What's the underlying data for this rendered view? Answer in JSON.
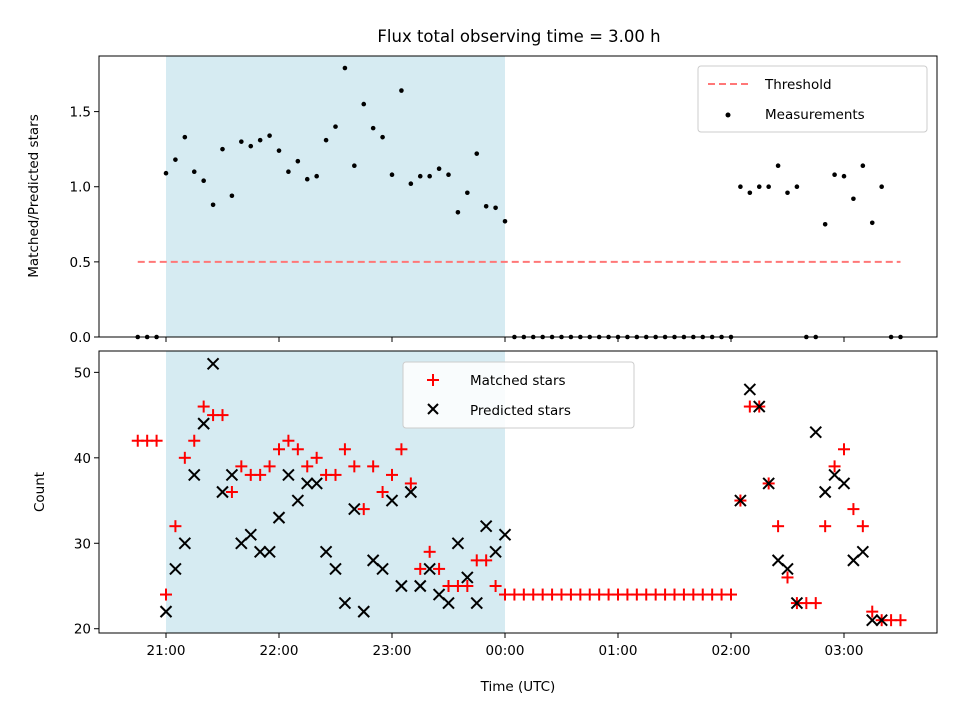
{
  "chart_data": [
    {
      "type": "scatter",
      "title": "Flux total observing time = 3.00 h",
      "xlabel": "",
      "ylabel": "Matched/Predicted stars",
      "ylim": [
        0,
        1.87
      ],
      "yticks": [
        "0.0",
        "0.5",
        "1.0",
        "1.5"
      ],
      "shaded_span": [
        "21:00",
        "00:00"
      ],
      "shade_color": "#add8e6",
      "legend_position": "top-right",
      "series": [
        {
          "name": "Threshold",
          "kind": "dashed-line",
          "color": "#ff7777",
          "x": [
            "20:45",
            "03:30"
          ],
          "y": [
            0.5,
            0.5
          ]
        },
        {
          "name": "Measurements",
          "kind": "points",
          "color": "#000000",
          "x": [
            "20:45",
            "20:50",
            "20:55",
            "21:00",
            "21:05",
            "21:10",
            "21:15",
            "21:20",
            "21:25",
            "21:30",
            "21:35",
            "21:40",
            "21:45",
            "21:50",
            "21:55",
            "22:00",
            "22:05",
            "22:10",
            "22:15",
            "22:20",
            "22:25",
            "22:30",
            "22:35",
            "22:40",
            "22:45",
            "22:50",
            "22:55",
            "23:00",
            "23:05",
            "23:10",
            "23:15",
            "23:20",
            "23:25",
            "23:30",
            "23:35",
            "23:40",
            "23:45",
            "23:50",
            "23:55",
            "00:00",
            "00:05",
            "00:10",
            "00:15",
            "00:20",
            "00:25",
            "00:30",
            "00:35",
            "00:40",
            "00:45",
            "00:50",
            "00:55",
            "01:00",
            "01:05",
            "01:10",
            "01:15",
            "01:20",
            "01:25",
            "01:30",
            "01:35",
            "01:40",
            "01:45",
            "01:50",
            "01:55",
            "02:00",
            "02:05",
            "02:10",
            "02:15",
            "02:20",
            "02:25",
            "02:30",
            "02:35",
            "02:40",
            "02:45",
            "02:50",
            "02:55",
            "03:00",
            "03:05",
            "03:10",
            "03:15",
            "03:20",
            "03:25",
            "03:30"
          ],
          "y": [
            0,
            0,
            0,
            1.09,
            1.18,
            1.33,
            1.1,
            1.04,
            0.88,
            1.25,
            0.94,
            1.3,
            1.27,
            1.31,
            1.34,
            1.24,
            1.1,
            1.17,
            1.05,
            1.07,
            1.31,
            1.4,
            1.79,
            1.14,
            1.55,
            1.39,
            1.33,
            1.08,
            1.64,
            1.02,
            1.07,
            1.07,
            1.12,
            1.08,
            0.83,
            0.96,
            1.22,
            0.87,
            0.86,
            0.77,
            0,
            0,
            0,
            0,
            0,
            0,
            0,
            0,
            0,
            0,
            0,
            0,
            0,
            0,
            0,
            0,
            0,
            0,
            0,
            0,
            0,
            0,
            0,
            0,
            1.0,
            0.96,
            1.0,
            1.0,
            1.14,
            0.96,
            1.0,
            0,
            0,
            0.75,
            1.08,
            1.07,
            0.92,
            1.14,
            0.76,
            1.0,
            0,
            0
          ]
        }
      ]
    },
    {
      "type": "scatter",
      "title": "",
      "xlabel": "Time (UTC)",
      "ylabel": "Count",
      "ylim": [
        19.5,
        52.5
      ],
      "yticks": [
        "20",
        "30",
        "40",
        "50"
      ],
      "xticks": [
        "21:00",
        "22:00",
        "23:00",
        "00:00",
        "01:00",
        "02:00",
        "03:00"
      ],
      "shaded_span": [
        "21:00",
        "00:00"
      ],
      "shade_color": "#add8e6",
      "legend_position": "top-center",
      "series": [
        {
          "name": "Matched stars",
          "kind": "plus",
          "color": "#ff0000",
          "x": [
            "20:45",
            "20:50",
            "20:55",
            "21:00",
            "21:05",
            "21:10",
            "21:15",
            "21:20",
            "21:25",
            "21:30",
            "21:35",
            "21:40",
            "21:45",
            "21:50",
            "21:55",
            "22:00",
            "22:05",
            "22:10",
            "22:15",
            "22:20",
            "22:25",
            "22:30",
            "22:35",
            "22:40",
            "22:45",
            "22:50",
            "22:55",
            "23:00",
            "23:05",
            "23:10",
            "23:15",
            "23:20",
            "23:25",
            "23:30",
            "23:35",
            "23:40",
            "23:45",
            "23:50",
            "23:55",
            "00:00",
            "00:05",
            "00:10",
            "00:15",
            "00:20",
            "00:25",
            "00:30",
            "00:35",
            "00:40",
            "00:45",
            "00:50",
            "00:55",
            "01:00",
            "01:05",
            "01:10",
            "01:15",
            "01:20",
            "01:25",
            "01:30",
            "01:35",
            "01:40",
            "01:45",
            "01:50",
            "01:55",
            "02:00",
            "02:05",
            "02:10",
            "02:15",
            "02:20",
            "02:25",
            "02:30",
            "02:35",
            "02:40",
            "02:45",
            "02:50",
            "02:55",
            "03:00",
            "03:05",
            "03:10",
            "03:15",
            "03:20",
            "03:25",
            "03:30"
          ],
          "y": [
            42,
            42,
            42,
            24,
            32,
            40,
            42,
            46,
            45,
            45,
            36,
            39,
            38,
            38,
            39,
            41,
            42,
            41,
            39,
            40,
            38,
            38,
            41,
            39,
            34,
            39,
            36,
            38,
            41,
            37,
            27,
            29,
            27,
            25,
            25,
            25,
            28,
            28,
            25,
            24,
            24,
            24,
            24,
            24,
            24,
            24,
            24,
            24,
            24,
            24,
            24,
            24,
            24,
            24,
            24,
            24,
            24,
            24,
            24,
            24,
            24,
            24,
            24,
            24,
            35,
            46,
            46,
            37,
            32,
            26,
            23,
            23,
            23,
            32,
            39,
            41,
            34,
            32,
            22,
            21,
            21,
            21
          ]
        },
        {
          "name": "Predicted stars",
          "kind": "x",
          "color": "#000000",
          "x": [
            "21:00",
            "21:05",
            "21:10",
            "21:15",
            "21:20",
            "21:25",
            "21:30",
            "21:35",
            "21:40",
            "21:45",
            "21:50",
            "21:55",
            "22:00",
            "22:05",
            "22:10",
            "22:15",
            "22:20",
            "22:25",
            "22:30",
            "22:35",
            "22:40",
            "22:45",
            "22:50",
            "22:55",
            "23:00",
            "23:05",
            "23:10",
            "23:15",
            "23:20",
            "23:25",
            "23:30",
            "23:35",
            "23:40",
            "23:45",
            "23:50",
            "23:55",
            "00:00",
            "02:05",
            "02:10",
            "02:15",
            "02:20",
            "02:25",
            "02:30",
            "02:35",
            "02:45",
            "02:50",
            "02:55",
            "03:00",
            "03:05",
            "03:10",
            "03:15",
            "03:20"
          ],
          "y": [
            22,
            27,
            30,
            38,
            44,
            51,
            36,
            38,
            30,
            31,
            29,
            29,
            33,
            38,
            35,
            37,
            37,
            29,
            27,
            23,
            34,
            22,
            28,
            27,
            35,
            25,
            36,
            25,
            27,
            24,
            23,
            30,
            26,
            23,
            32,
            29,
            31,
            35,
            48,
            46,
            37,
            28,
            27,
            23,
            43,
            36,
            38,
            37,
            28,
            29,
            21,
            21
          ]
        }
      ]
    }
  ]
}
